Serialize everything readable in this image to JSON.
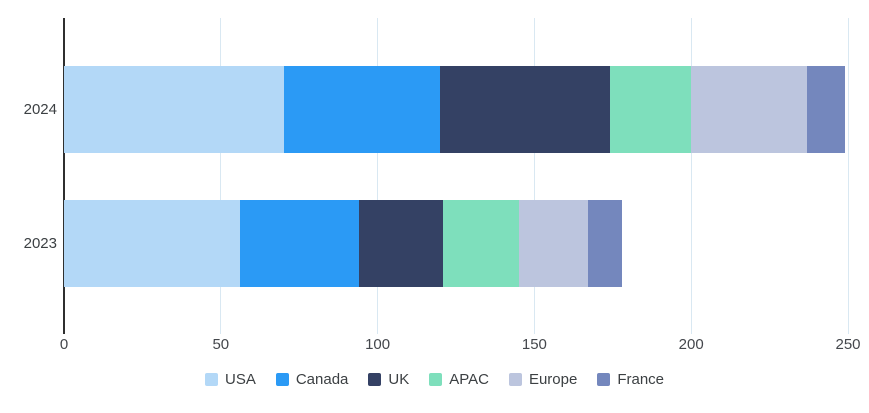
{
  "chart_data": {
    "type": "bar",
    "orientation": "horizontal",
    "stacked": true,
    "title": "",
    "xlabel": "",
    "ylabel": "",
    "categories": [
      "2024",
      "2023"
    ],
    "series": [
      {
        "name": "USA",
        "color": "#b3d8f7",
        "values": [
          70,
          56
        ]
      },
      {
        "name": "Canada",
        "color": "#2b9af5",
        "values": [
          50,
          38
        ]
      },
      {
        "name": "UK",
        "color": "#344164",
        "values": [
          54,
          27
        ]
      },
      {
        "name": "APAC",
        "color": "#7edfbc",
        "values": [
          26,
          24
        ]
      },
      {
        "name": "Europe",
        "color": "#bcc5de",
        "values": [
          37,
          22
        ]
      },
      {
        "name": "France",
        "color": "#7487bd",
        "values": [
          12,
          11
        ]
      }
    ],
    "totals": [
      249,
      178
    ],
    "x_axis": {
      "min": 0,
      "max": 250,
      "ticks": [
        0,
        50,
        100,
        150,
        200,
        250
      ]
    },
    "grid": true,
    "legend_position": "bottom"
  },
  "style": {
    "gridline_color": "#d9e8f2",
    "axis_color": "#2f2f2f",
    "tick_text_color": "#44474c",
    "label_text_color": "#3c4043",
    "background": "#ffffff"
  }
}
